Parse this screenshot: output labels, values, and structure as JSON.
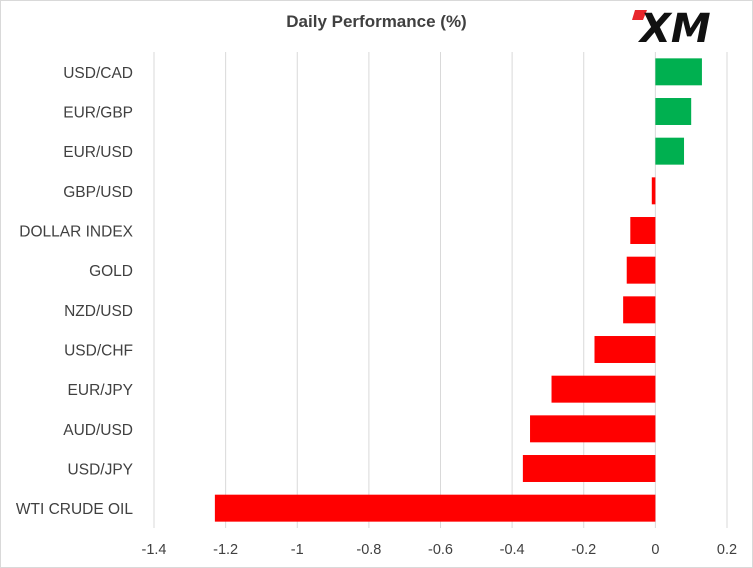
{
  "chart_data": {
    "type": "bar",
    "orientation": "horizontal",
    "title": "Daily Performance  (%)",
    "categories": [
      "USD/CAD",
      "EUR/GBP",
      "EUR/USD",
      "GBP/USD",
      "DOLLAR INDEX",
      "GOLD",
      "NZD/USD",
      "USD/CHF",
      "EUR/JPY",
      "AUD/USD",
      "USD/JPY",
      "WTI CRUDE OIL"
    ],
    "values": [
      0.13,
      0.1,
      0.08,
      -0.01,
      -0.07,
      -0.08,
      -0.09,
      -0.17,
      -0.29,
      -0.35,
      -0.37,
      -1.23
    ],
    "xlim": [
      -1.4,
      0.2
    ],
    "x_ticks": [
      "-1.4",
      "-1.2",
      "-1",
      "-0.8",
      "-0.6",
      "-0.4",
      "-0.2",
      "0",
      "0.2"
    ],
    "xlabel": "",
    "ylabel": "",
    "grid": "vertical",
    "legend": "none",
    "colors": {
      "positive": "#00b050",
      "negative": "#ff0000",
      "grid": "#d9d9d9",
      "text": "#404040"
    }
  },
  "logo": {
    "text": "XM",
    "color": "#111111",
    "accent": "#e8262b",
    "icon": "xm-logo-icon"
  }
}
